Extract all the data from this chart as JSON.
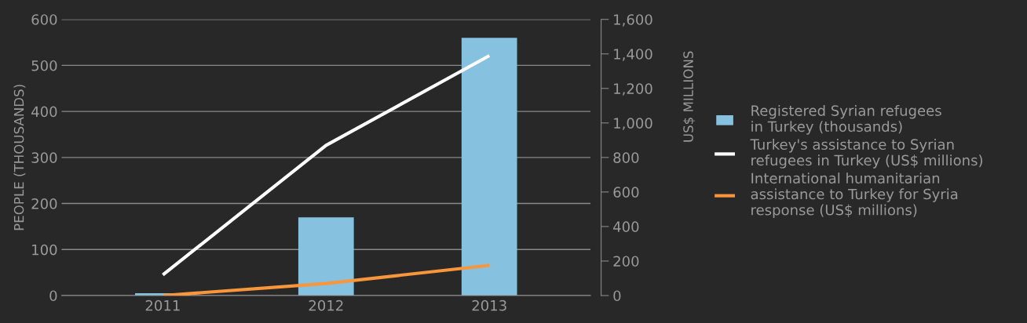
{
  "chart_data": {
    "type": "bar",
    "categories": [
      "2011",
      "2012",
      "2013"
    ],
    "ylabel": "PEOPLE (THOUSANDS)",
    "y2label": "US$ MILLIONS",
    "ylim": [
      0,
      600
    ],
    "yticks": [
      0,
      100,
      200,
      300,
      400,
      500,
      600
    ],
    "y2lim": [
      0,
      1600
    ],
    "y2ticks": [
      {
        "value": 0,
        "label": "0"
      },
      {
        "value": 200,
        "label": "200"
      },
      {
        "value": 400,
        "label": "400"
      },
      {
        "value": 600,
        "label": "600"
      },
      {
        "value": 800,
        "label": "800"
      },
      {
        "value": 1000,
        "label": "1,000"
      },
      {
        "value": 1200,
        "label": "1,200"
      },
      {
        "value": 1400,
        "label": "1,400"
      },
      {
        "value": 1600,
        "label": "1,600"
      }
    ],
    "grid": "y",
    "legend": "right",
    "series": [
      {
        "name": "Registered Syrian refugees\nin Turkey (thousands)",
        "color": "#86c2e0",
        "values": [
          5,
          170,
          560
        ]
      },
      {
        "name": "Turkey's assistance to Syrian\nrefugees in Turkey (US$ millions)",
        "type": "line",
        "axis": "y2",
        "color": "#ffffff",
        "values": [
          120,
          870,
          1390
        ]
      },
      {
        "name": "International humanitarian\nassistance to Turkey for Syria\nresponse (US$ millions)",
        "type": "line",
        "axis": "y2",
        "color": "#f7963b",
        "values": [
          0,
          70,
          175
        ]
      }
    ]
  }
}
